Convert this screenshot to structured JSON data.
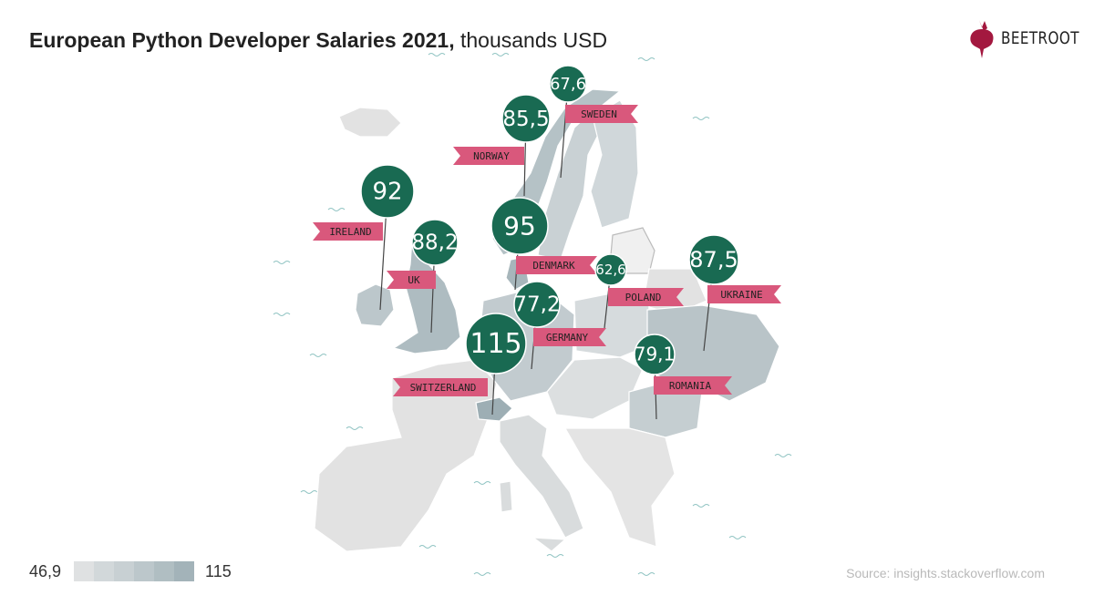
{
  "header": {
    "title_bold": "European Python Developer Salaries 2021,",
    "title_rest": " thousands USD"
  },
  "logo": {
    "text": "BEETROOT",
    "color": "#a3183f"
  },
  "legend": {
    "min": "46,9",
    "max": "115",
    "colors": [
      "#dfe1e2",
      "#d2d8da",
      "#c8d0d3",
      "#bcc7cb",
      "#b0bec2",
      "#a3b3b9"
    ]
  },
  "source": "Source: insights.stackoverflow.com",
  "colors": {
    "pin_circle": "#196a52",
    "flag": "#d9587c",
    "land_base": "#e2e2e2",
    "water_marks": "#8fc3c2"
  },
  "chart_data": {
    "type": "map",
    "unit": "thousands USD",
    "countries": [
      {
        "name": "SWEDEN",
        "value": "67,6"
      },
      {
        "name": "NORWAY",
        "value": "85,5"
      },
      {
        "name": "IRELAND",
        "value": "92"
      },
      {
        "name": "UK",
        "value": "88,2"
      },
      {
        "name": "DENMARK",
        "value": "95"
      },
      {
        "name": "POLAND",
        "value": "62,6"
      },
      {
        "name": "UKRAINE",
        "value": "87,5"
      },
      {
        "name": "GERMANY",
        "value": "77,2"
      },
      {
        "name": "SWITZERLAND",
        "value": "115"
      },
      {
        "name": "ROMANIA",
        "value": "79,1"
      }
    ]
  }
}
